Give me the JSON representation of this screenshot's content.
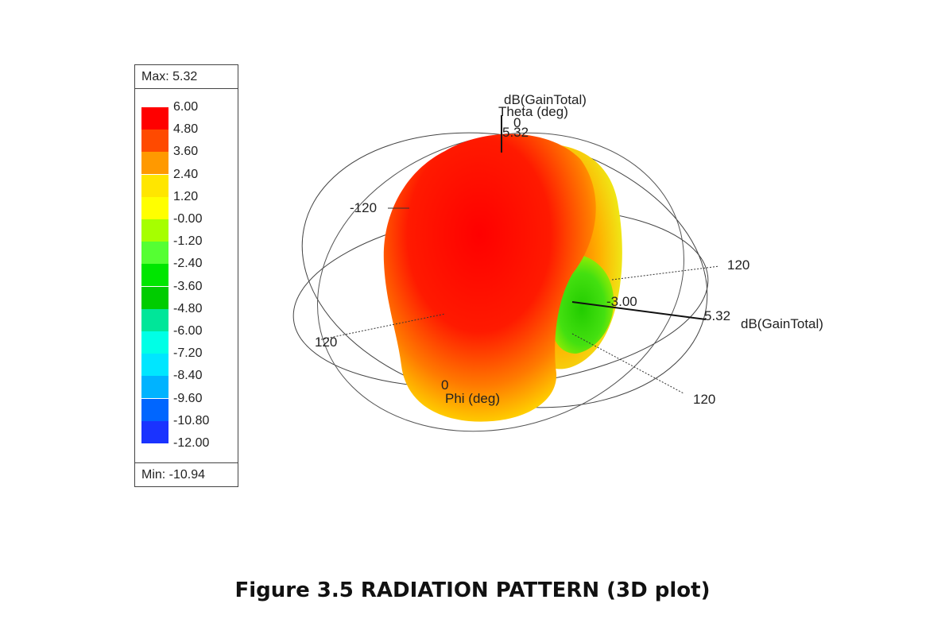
{
  "chart_data": {
    "type": "3d-radiation-pattern",
    "quantity": "dB(GainTotal)",
    "max_label": "Max: 5.32",
    "min_label": "Min: -10.94",
    "max_value": 5.32,
    "min_value": -10.94,
    "legend": {
      "levels": [
        "6.00",
        "4.80",
        "3.60",
        "2.40",
        "1.20",
        "-0.00",
        "-1.20",
        "-2.40",
        "-3.60",
        "-4.80",
        "-6.00",
        "-7.20",
        "-8.40",
        "-9.60",
        "-10.80",
        "-12.00"
      ],
      "colors": [
        "#ff0000",
        "#ff4a00",
        "#ff9900",
        "#ffe600",
        "#ffff00",
        "#a6ff00",
        "#55ff33",
        "#00e600",
        "#00cc00",
        "#00e699",
        "#00ffe6",
        "#00e6ff",
        "#00b3ff",
        "#0066ff",
        "#1a33ff",
        "#0000e6"
      ]
    },
    "axes": {
      "theta_title": "Theta (deg)",
      "phi_title": "Phi (deg)",
      "gain_title": "dB(GainTotal)",
      "gain_top_label": "dB(GainTotal)",
      "theta_zero": "0",
      "phi_zero": "0",
      "tick_minus_120": "-120",
      "tick_120_left": "120",
      "tick_120_right": "120",
      "tick_120_bottom": "120",
      "value_top": "5.32",
      "value_right": "5.32",
      "value_inner": "-3.00"
    }
  },
  "caption": "Figure 3.5 RADIATION PATTERN (3D plot)"
}
